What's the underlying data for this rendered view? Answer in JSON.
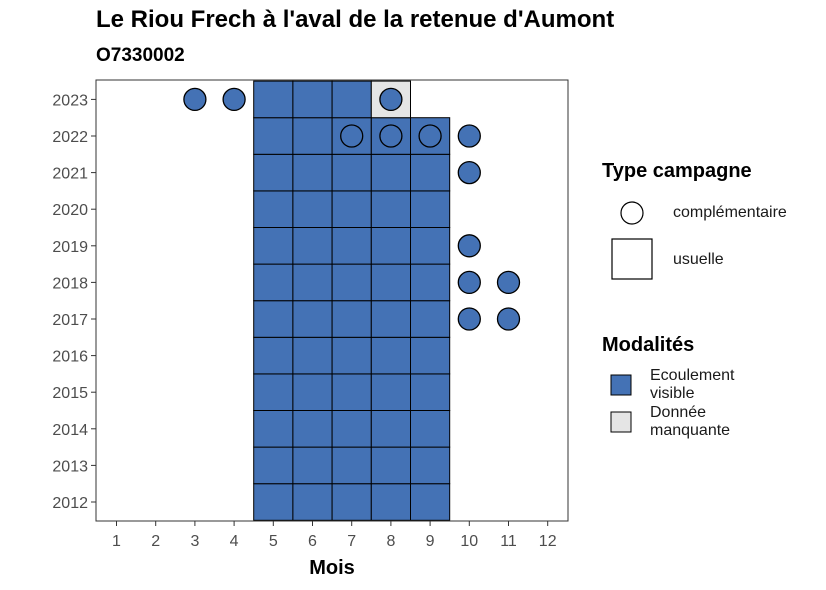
{
  "chart_data": {
    "type": "heatmap",
    "title": "Le Riou Frech à l'aval de la retenue d'Aumont",
    "subtitle": "O7330002",
    "xlabel": "Mois",
    "ylabel": "",
    "x_ticks": [
      "1",
      "2",
      "3",
      "4",
      "5",
      "6",
      "7",
      "8",
      "9",
      "10",
      "11",
      "12"
    ],
    "y_ticks": [
      "2012",
      "2013",
      "2014",
      "2015",
      "2016",
      "2017",
      "2018",
      "2019",
      "2020",
      "2021",
      "2022",
      "2023"
    ],
    "grid": false,
    "legend_position": "right",
    "colors": {
      "ecoulement_visible": "#4472b5",
      "donnee_manquante": "#e5e5e5",
      "point_complementaire": "#4472b5"
    },
    "usuelle": [
      {
        "year": 2012,
        "month": 5,
        "mod": "Ecoulement visible"
      },
      {
        "year": 2012,
        "month": 6,
        "mod": "Ecoulement visible"
      },
      {
        "year": 2012,
        "month": 7,
        "mod": "Ecoulement visible"
      },
      {
        "year": 2012,
        "month": 8,
        "mod": "Ecoulement visible"
      },
      {
        "year": 2012,
        "month": 9,
        "mod": "Ecoulement visible"
      },
      {
        "year": 2013,
        "month": 5,
        "mod": "Ecoulement visible"
      },
      {
        "year": 2013,
        "month": 6,
        "mod": "Ecoulement visible"
      },
      {
        "year": 2013,
        "month": 7,
        "mod": "Ecoulement visible"
      },
      {
        "year": 2013,
        "month": 8,
        "mod": "Ecoulement visible"
      },
      {
        "year": 2013,
        "month": 9,
        "mod": "Ecoulement visible"
      },
      {
        "year": 2014,
        "month": 5,
        "mod": "Ecoulement visible"
      },
      {
        "year": 2014,
        "month": 6,
        "mod": "Ecoulement visible"
      },
      {
        "year": 2014,
        "month": 7,
        "mod": "Ecoulement visible"
      },
      {
        "year": 2014,
        "month": 8,
        "mod": "Ecoulement visible"
      },
      {
        "year": 2014,
        "month": 9,
        "mod": "Ecoulement visible"
      },
      {
        "year": 2015,
        "month": 5,
        "mod": "Ecoulement visible"
      },
      {
        "year": 2015,
        "month": 6,
        "mod": "Ecoulement visible"
      },
      {
        "year": 2015,
        "month": 7,
        "mod": "Ecoulement visible"
      },
      {
        "year": 2015,
        "month": 8,
        "mod": "Ecoulement visible"
      },
      {
        "year": 2015,
        "month": 9,
        "mod": "Ecoulement visible"
      },
      {
        "year": 2016,
        "month": 5,
        "mod": "Ecoulement visible"
      },
      {
        "year": 2016,
        "month": 6,
        "mod": "Ecoulement visible"
      },
      {
        "year": 2016,
        "month": 7,
        "mod": "Ecoulement visible"
      },
      {
        "year": 2016,
        "month": 8,
        "mod": "Ecoulement visible"
      },
      {
        "year": 2016,
        "month": 9,
        "mod": "Ecoulement visible"
      },
      {
        "year": 2017,
        "month": 5,
        "mod": "Ecoulement visible"
      },
      {
        "year": 2017,
        "month": 6,
        "mod": "Ecoulement visible"
      },
      {
        "year": 2017,
        "month": 7,
        "mod": "Ecoulement visible"
      },
      {
        "year": 2017,
        "month": 8,
        "mod": "Ecoulement visible"
      },
      {
        "year": 2017,
        "month": 9,
        "mod": "Ecoulement visible"
      },
      {
        "year": 2018,
        "month": 5,
        "mod": "Ecoulement visible"
      },
      {
        "year": 2018,
        "month": 6,
        "mod": "Ecoulement visible"
      },
      {
        "year": 2018,
        "month": 7,
        "mod": "Ecoulement visible"
      },
      {
        "year": 2018,
        "month": 8,
        "mod": "Ecoulement visible"
      },
      {
        "year": 2018,
        "month": 9,
        "mod": "Ecoulement visible"
      },
      {
        "year": 2019,
        "month": 5,
        "mod": "Ecoulement visible"
      },
      {
        "year": 2019,
        "month": 6,
        "mod": "Ecoulement visible"
      },
      {
        "year": 2019,
        "month": 7,
        "mod": "Ecoulement visible"
      },
      {
        "year": 2019,
        "month": 8,
        "mod": "Ecoulement visible"
      },
      {
        "year": 2019,
        "month": 9,
        "mod": "Ecoulement visible"
      },
      {
        "year": 2020,
        "month": 5,
        "mod": "Ecoulement visible"
      },
      {
        "year": 2020,
        "month": 6,
        "mod": "Ecoulement visible"
      },
      {
        "year": 2020,
        "month": 7,
        "mod": "Ecoulement visible"
      },
      {
        "year": 2020,
        "month": 8,
        "mod": "Ecoulement visible"
      },
      {
        "year": 2020,
        "month": 9,
        "mod": "Ecoulement visible"
      },
      {
        "year": 2021,
        "month": 5,
        "mod": "Ecoulement visible"
      },
      {
        "year": 2021,
        "month": 6,
        "mod": "Ecoulement visible"
      },
      {
        "year": 2021,
        "month": 7,
        "mod": "Ecoulement visible"
      },
      {
        "year": 2021,
        "month": 8,
        "mod": "Ecoulement visible"
      },
      {
        "year": 2021,
        "month": 9,
        "mod": "Ecoulement visible"
      },
      {
        "year": 2022,
        "month": 5,
        "mod": "Ecoulement visible"
      },
      {
        "year": 2022,
        "month": 6,
        "mod": "Ecoulement visible"
      },
      {
        "year": 2022,
        "month": 7,
        "mod": "Ecoulement visible"
      },
      {
        "year": 2022,
        "month": 8,
        "mod": "Ecoulement visible"
      },
      {
        "year": 2022,
        "month": 9,
        "mod": "Ecoulement visible"
      },
      {
        "year": 2023,
        "month": 5,
        "mod": "Ecoulement visible"
      },
      {
        "year": 2023,
        "month": 6,
        "mod": "Ecoulement visible"
      },
      {
        "year": 2023,
        "month": 7,
        "mod": "Ecoulement visible"
      },
      {
        "year": 2023,
        "month": 8,
        "mod": "Donnée manquante"
      }
    ],
    "complementaire": [
      {
        "year": 2023,
        "month": 3
      },
      {
        "year": 2023,
        "month": 4
      },
      {
        "year": 2023,
        "month": 8
      },
      {
        "year": 2022,
        "month": 7
      },
      {
        "year": 2022,
        "month": 8
      },
      {
        "year": 2022,
        "month": 9
      },
      {
        "year": 2022,
        "month": 10
      },
      {
        "year": 2021,
        "month": 10
      },
      {
        "year": 2019,
        "month": 10
      },
      {
        "year": 2018,
        "month": 10
      },
      {
        "year": 2018,
        "month": 11
      },
      {
        "year": 2017,
        "month": 10
      },
      {
        "year": 2017,
        "month": 11
      }
    ]
  },
  "legend": {
    "type_title": "Type campagne",
    "complementaire_label": "complémentaire",
    "usuelle_label": "usuelle",
    "modalites_title": "Modalités",
    "ecoulement_line1": "Ecoulement",
    "ecoulement_line2": "visible",
    "manquante_line1": "Donnée",
    "manquante_line2": "manquante"
  }
}
